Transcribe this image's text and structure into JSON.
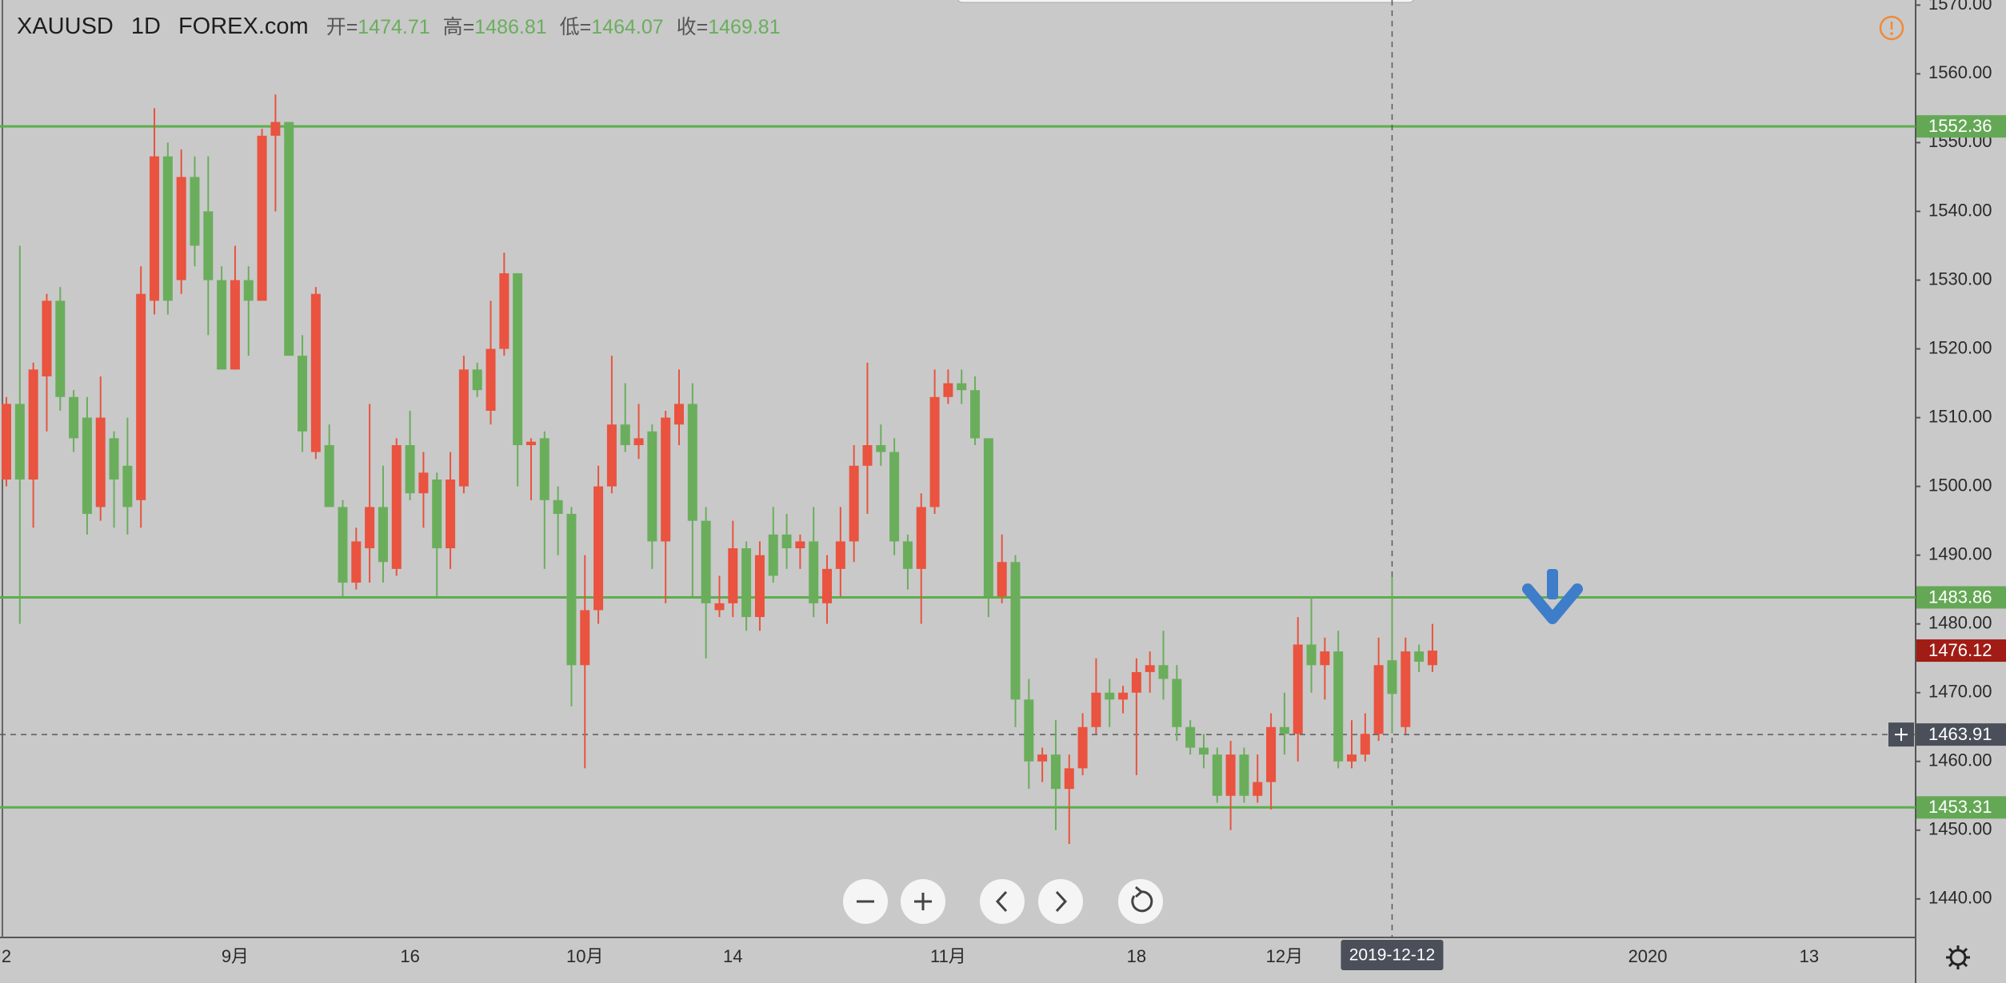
{
  "chart_data": {
    "type": "candlestick",
    "symbol": "XAUUSD",
    "interval": "1D",
    "source": "FOREX.com",
    "ohlc_labels": [
      "开=",
      "高=",
      "低=",
      "收="
    ],
    "header_index": 103,
    "up_color": "#e9533f",
    "down_color": "#6aae5c",
    "categories": [
      "2",
      null,
      null,
      null,
      null,
      null,
      null,
      null,
      null,
      null,
      null,
      null,
      null,
      null,
      null,
      null,
      null,
      "9月",
      null,
      null,
      null,
      null,
      null,
      null,
      null,
      null,
      null,
      null,
      null,
      null,
      "16",
      null,
      null,
      null,
      null,
      null,
      null,
      null,
      null,
      null,
      null,
      null,
      null,
      "10月",
      null,
      null,
      null,
      null,
      null,
      null,
      null,
      null,
      null,
      null,
      "14",
      null,
      null,
      null,
      null,
      null,
      null,
      null,
      null,
      null,
      null,
      null,
      null,
      null,
      null,
      null,
      "11月",
      null,
      null,
      null,
      null,
      null,
      null,
      null,
      null,
      null,
      null,
      null,
      null,
      null,
      "18",
      null,
      null,
      null,
      null,
      null,
      null,
      null,
      null,
      null,
      null,
      "12月",
      null,
      null,
      null,
      null,
      null,
      null,
      null,
      "2019-12-12",
      null,
      null,
      null,
      null,
      null,
      null,
      null,
      null,
      null,
      null,
      null,
      null,
      null,
      null,
      null,
      null,
      null,
      null,
      "2020",
      null,
      null,
      null,
      null,
      null,
      null,
      null,
      null,
      null,
      null,
      null,
      "13",
      null,
      null,
      null,
      null,
      null,
      null,
      null,
      null
    ],
    "open": [
      1501,
      1512,
      1501,
      1516,
      1527,
      1513,
      1510,
      1497,
      1507,
      1503,
      1498,
      1527,
      1548,
      1530,
      1545,
      1540,
      1530,
      1517,
      1530,
      1527,
      1551,
      1553,
      1519,
      1505,
      1506,
      1497,
      1486,
      1491,
      1497,
      1488,
      1506,
      1499,
      1501,
      1491,
      1500,
      1517,
      1511,
      1520,
      1531,
      1506,
      1507,
      1498,
      1496,
      1474,
      1482,
      1500,
      1509,
      1506,
      1508,
      1492,
      1509,
      1512,
      1495,
      1482,
      1483,
      1491,
      1481,
      1493,
      1493,
      1491,
      1492,
      1483,
      1488,
      1492,
      1503,
      1506,
      1505,
      1492,
      1488,
      1497,
      1513,
      1515,
      1514,
      1507,
      1484,
      1489,
      1469,
      1460,
      1461,
      1456,
      1459,
      1465,
      1470,
      1469,
      1470,
      1473,
      1474,
      1472,
      1465,
      1462,
      1461,
      1455,
      1461,
      1455,
      1457,
      1465,
      1464,
      1477,
      1474,
      1476,
      1460,
      1461,
      1464,
      1474.71,
      1465,
      1476,
      1474,
      null,
      null,
      null,
      null,
      null,
      null,
      null,
      null,
      null,
      null,
      null,
      null,
      null,
      null,
      null,
      null,
      null,
      null,
      null,
      null,
      null,
      null,
      null,
      null,
      null,
      null,
      null,
      null,
      null,
      null,
      null,
      null,
      null,
      null,
      null,
      null
    ],
    "high": [
      1513,
      1535,
      1518,
      1528,
      1529,
      1514,
      1513,
      1516,
      1508,
      1510,
      1532,
      1555,
      1550,
      1549,
      1548,
      1548,
      1532,
      1535,
      1532,
      1552,
      1557,
      1553,
      1522,
      1529,
      1509,
      1498,
      1494,
      1512,
      1503,
      1507,
      1511,
      1505,
      1502,
      1505,
      1519,
      1518,
      1527,
      1534,
      1531,
      1507,
      1508,
      1500,
      1497,
      1490,
      1503,
      1519,
      1515,
      1512,
      1509,
      1511,
      1517,
      1515,
      1497,
      1487,
      1495,
      1492,
      1492,
      1497,
      1496,
      1493,
      1497,
      1490,
      1497,
      1506,
      1518,
      1509,
      1507,
      1493,
      1499,
      1517,
      1517,
      1517,
      1516,
      1507,
      1493,
      1490,
      1472,
      1462,
      1466,
      1461,
      1467,
      1475,
      1472,
      1471,
      1475,
      1476,
      1479,
      1474,
      1466,
      1464,
      1462,
      1463,
      1462,
      1461,
      1467,
      1470,
      1481,
      1484,
      1478,
      1479,
      1466,
      1467,
      1478,
      1486.81,
      1478,
      1477,
      1480,
      null,
      null,
      null,
      null,
      null,
      null,
      null,
      null,
      null,
      null,
      null,
      null,
      null,
      null,
      null,
      null,
      null,
      null,
      null,
      null,
      null,
      null,
      null,
      null,
      null,
      null,
      null,
      null,
      null,
      null,
      null,
      null,
      null,
      null,
      null,
      null
    ],
    "low": [
      1500,
      1480,
      1494,
      1508,
      1511,
      1505,
      1493,
      1495,
      1494,
      1493,
      1494,
      1525,
      1525,
      1528,
      1532,
      1522,
      1517,
      1517,
      1519,
      1527,
      1540,
      1519,
      1505,
      1504,
      1497,
      1484,
      1485,
      1486,
      1486,
      1487,
      1498,
      1494,
      1484,
      1488,
      1499,
      1513,
      1509,
      1519,
      1500,
      1498,
      1488,
      1490,
      1468,
      1459,
      1480,
      1499,
      1505,
      1504,
      1488,
      1483,
      1506,
      1484,
      1475,
      1481,
      1481,
      1479,
      1479,
      1486,
      1488,
      1488,
      1481,
      1480,
      1484,
      1489,
      1496,
      1503,
      1490,
      1485,
      1480,
      1496,
      1512,
      1512,
      1506,
      1481,
      1483,
      1465,
      1456,
      1457,
      1450,
      1448,
      1458,
      1464,
      1465,
      1467,
      1458,
      1470,
      1469,
      1463,
      1461,
      1459,
      1454,
      1450,
      1454,
      1454,
      1453,
      1461,
      1460,
      1470,
      1469,
      1459,
      1459,
      1460,
      1463,
      1464.07,
      1464,
      1473,
      1473,
      null,
      null,
      null,
      null,
      null,
      null,
      null,
      null,
      null,
      null,
      null,
      null,
      null,
      null,
      null,
      null,
      null,
      null,
      null,
      null,
      null,
      null,
      null,
      null,
      null,
      null,
      null,
      null,
      null,
      null,
      null,
      null,
      null,
      null,
      null,
      null
    ],
    "close": [
      1512,
      1501,
      1517,
      1527,
      1513,
      1507,
      1496,
      1510,
      1501,
      1497,
      1528,
      1548,
      1527,
      1545,
      1535,
      1530,
      1517,
      1530,
      1527,
      1551,
      1553,
      1519,
      1508,
      1528,
      1497,
      1486,
      1492,
      1497,
      1489,
      1506,
      1499,
      1502,
      1491,
      1501,
      1517,
      1514,
      1520,
      1531,
      1506,
      1506.5,
      1498,
      1496,
      1474,
      1482,
      1500,
      1509,
      1506,
      1507,
      1492,
      1510,
      1512,
      1495,
      1483,
      1483,
      1491,
      1481,
      1490,
      1487,
      1491,
      1492,
      1483,
      1488,
      1492,
      1503,
      1506,
      1505,
      1492,
      1488,
      1497,
      1513,
      1515,
      1514,
      1507,
      1484,
      1489,
      1469,
      1460,
      1461,
      1456,
      1459,
      1465,
      1470,
      1469,
      1470,
      1473,
      1474,
      1472,
      1465,
      1462,
      1461,
      1455,
      1461,
      1455,
      1457,
      1465,
      1464,
      1477,
      1474,
      1476,
      1460,
      1461,
      1464,
      1474,
      1469.81,
      1476,
      1474.5,
      1476.12,
      null,
      null,
      null,
      null,
      null,
      null,
      null,
      null,
      null,
      null,
      null,
      null,
      null,
      null,
      null,
      null,
      null,
      null,
      null,
      null,
      null,
      null,
      null,
      null,
      null,
      null,
      null,
      null,
      null,
      null,
      null,
      null,
      null,
      null,
      null,
      null
    ],
    "ylim": [
      1434.4,
      1570.74
    ],
    "yticks": [
      {
        "value": 1440,
        "label": "1440.00"
      },
      {
        "value": 1450,
        "label": "1450.00"
      },
      {
        "value": 1460,
        "label": "1460.00"
      },
      {
        "value": 1470,
        "label": "1470.00"
      },
      {
        "value": 1480,
        "label": "1480.00"
      },
      {
        "value": 1490,
        "label": "1490.00"
      },
      {
        "value": 1500,
        "label": "1500.00"
      },
      {
        "value": 1510,
        "label": "1510.00"
      },
      {
        "value": 1520,
        "label": "1520.00"
      },
      {
        "value": 1530,
        "label": "1530.00"
      },
      {
        "value": 1540,
        "label": "1540.00"
      },
      {
        "value": 1550,
        "label": "1550.00"
      },
      {
        "value": 1560,
        "label": "1560.00"
      },
      {
        "value": 1570,
        "label": "1570.00"
      }
    ],
    "hlines": [
      1552.36,
      1483.86,
      1453.31
    ],
    "hline_color": "#5cae4c",
    "crosshair": {
      "index": 103,
      "price": 1463.91
    }
  }
}
